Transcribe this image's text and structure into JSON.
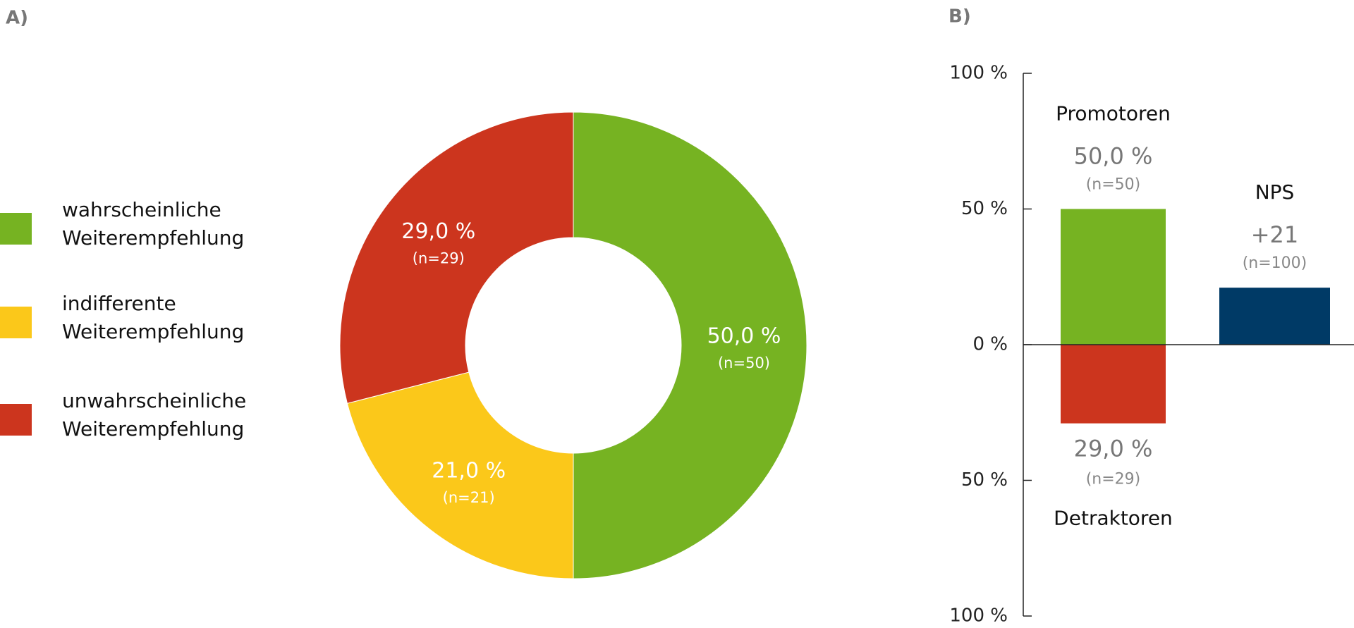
{
  "chart_data": [
    {
      "type": "pie",
      "panel_label": "A)",
      "donut": true,
      "categories": [
        "wahrscheinliche Weiterempfehlung",
        "indifferente Weiterempfehlung",
        "unwahrscheinliche Weiterempfehlung"
      ],
      "values": [
        50,
        21,
        29
      ],
      "value_labels": [
        "50,0 %",
        "21,0 %",
        "29,0 %"
      ],
      "n_labels": [
        "(n=50)",
        "(n=21)",
        "(n=29)"
      ],
      "colors": [
        "#76b322",
        "#fbc81a",
        "#cc351e"
      ]
    },
    {
      "type": "bar",
      "panel_label": "B)",
      "stacked": true,
      "categories": [
        null,
        null
      ],
      "series": [
        {
          "name": "Promotoren",
          "color": "#76b322",
          "values": [
            50,
            null
          ],
          "value_labels": [
            "50,0 %",
            null
          ],
          "n_labels": [
            "(n=50)",
            null
          ]
        },
        {
          "name": "Detraktoren",
          "color": "#cc351e",
          "values": [
            -29,
            null
          ],
          "value_labels": [
            "29,0 %",
            null
          ],
          "n_labels": [
            "(n=29)",
            null
          ]
        },
        {
          "name": "NPS",
          "color": "#003a66",
          "values": [
            null,
            21
          ],
          "value_labels": [
            null,
            "+21"
          ],
          "n_labels": [
            null,
            "(n=100)"
          ]
        }
      ],
      "ylim": [
        -100,
        100
      ],
      "yticks": [
        {
          "value": -100,
          "label": "100 %"
        },
        {
          "value": -50,
          "label": "50 %"
        },
        {
          "value": 0,
          "label": "0 %"
        },
        {
          "value": 50,
          "label": "50 %"
        },
        {
          "value": 100,
          "label": "100 %"
        }
      ]
    }
  ]
}
